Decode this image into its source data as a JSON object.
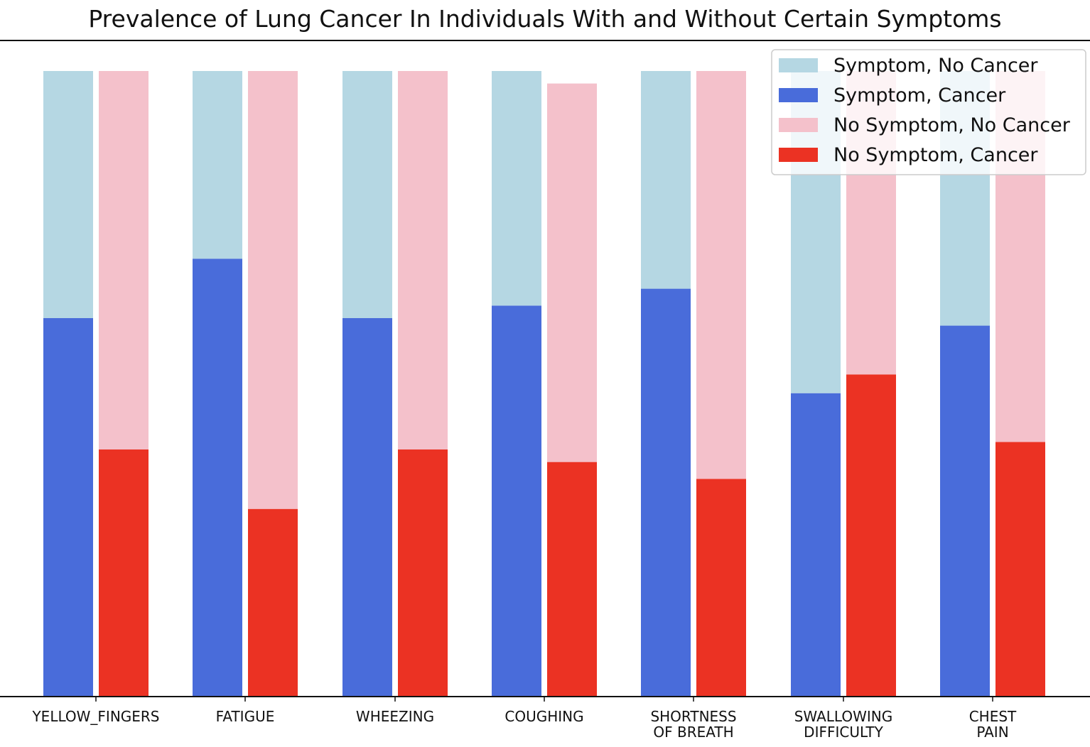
{
  "chart_data": {
    "type": "bar",
    "title": "Prevalence of Lung Cancer In Individuals With and Without Certain Symptoms",
    "categories": [
      [
        "YELLOW_FINGERS"
      ],
      [
        "FATIGUE"
      ],
      [
        "WHEEZING"
      ],
      [
        "COUGHING"
      ],
      [
        "SHORTNESS",
        "OF BREATH"
      ],
      [
        "SWALLOWING",
        "DIFFICULTY"
      ],
      [
        "CHEST",
        "PAIN"
      ]
    ],
    "ylim": [
      0,
      1
    ],
    "grid": false,
    "legend_position": "top-right",
    "series": [
      {
        "name": "Symptom, No Cancer",
        "color": "#b5d7e3",
        "group": "symptom",
        "values": [
          0.395,
          0.3,
          0.395,
          0.375,
          0.348,
          0.515,
          0.407
        ]
      },
      {
        "name": "Symptom, Cancer",
        "color": "#496cda",
        "group": "symptom",
        "values": [
          0.605,
          0.7,
          0.605,
          0.625,
          0.652,
          0.485,
          0.593
        ]
      },
      {
        "name": "No Symptom, No Cancer",
        "color": "#f4c1cb",
        "group": "no_symptom",
        "values": [
          0.605,
          0.7,
          0.605,
          0.605,
          0.652,
          0.485,
          0.593
        ]
      },
      {
        "name": "No Symptom, Cancer",
        "color": "#eb3223",
        "group": "no_symptom",
        "values": [
          0.395,
          0.3,
          0.395,
          0.375,
          0.348,
          0.515,
          0.407
        ]
      }
    ]
  }
}
